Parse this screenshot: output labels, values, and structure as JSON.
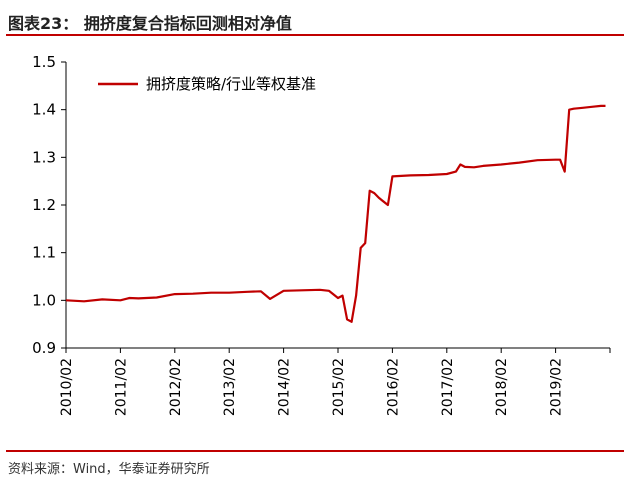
{
  "figure": {
    "title": "图表23：  拥挤度复合指标回测相对净值",
    "source": "资料来源：Wind，华泰证券研究所"
  },
  "colors": {
    "accent": "#c00000",
    "line": "#c00000",
    "axis": "#000000"
  },
  "chart_data": {
    "type": "line",
    "title": "",
    "xlabel": "",
    "ylabel": "",
    "ylim": [
      0.9,
      1.5
    ],
    "yticks": [
      "0.9",
      "1.0",
      "1.1",
      "1.2",
      "1.3",
      "1.4",
      "1.5"
    ],
    "xticks": [
      "2010/02",
      "2011/02",
      "2012/02",
      "2013/02",
      "2014/02",
      "2015/02",
      "2016/02",
      "2017/02",
      "2018/02",
      "2019/02"
    ],
    "grid": false,
    "legend_position": "top-left",
    "series": [
      {
        "name": "拥挤度策略/行业等权基准",
        "x": [
          "2010/02",
          "2010/06",
          "2010/10",
          "2011/02",
          "2011/04",
          "2011/06",
          "2011/10",
          "2012/02",
          "2012/06",
          "2012/10",
          "2013/02",
          "2013/06",
          "2013/09",
          "2013/11",
          "2014/02",
          "2014/06",
          "2014/10",
          "2014/12",
          "2015/02",
          "2015/03",
          "2015/04",
          "2015/05",
          "2015/06",
          "2015/07",
          "2015/08",
          "2015/09",
          "2015/10",
          "2015/11",
          "2016/01",
          "2016/02",
          "2016/06",
          "2016/10",
          "2017/02",
          "2017/04",
          "2017/05",
          "2017/06",
          "2017/08",
          "2017/10",
          "2018/02",
          "2018/06",
          "2018/10",
          "2019/02",
          "2019/03",
          "2019/04",
          "2019/05",
          "2019/06",
          "2019/08",
          "2019/10",
          "2019/12",
          "2020/01"
        ],
        "y": [
          1.0,
          0.998,
          1.002,
          1.0,
          1.005,
          1.004,
          1.006,
          1.013,
          1.014,
          1.016,
          1.016,
          1.018,
          1.019,
          1.003,
          1.02,
          1.021,
          1.022,
          1.02,
          1.005,
          1.01,
          0.96,
          0.955,
          1.01,
          1.11,
          1.12,
          1.23,
          1.225,
          1.215,
          1.2,
          1.26,
          1.262,
          1.263,
          1.265,
          1.27,
          1.285,
          1.28,
          1.279,
          1.282,
          1.285,
          1.289,
          1.294,
          1.295,
          1.295,
          1.27,
          1.4,
          1.402,
          1.404,
          1.406,
          1.408,
          1.408
        ]
      }
    ]
  }
}
